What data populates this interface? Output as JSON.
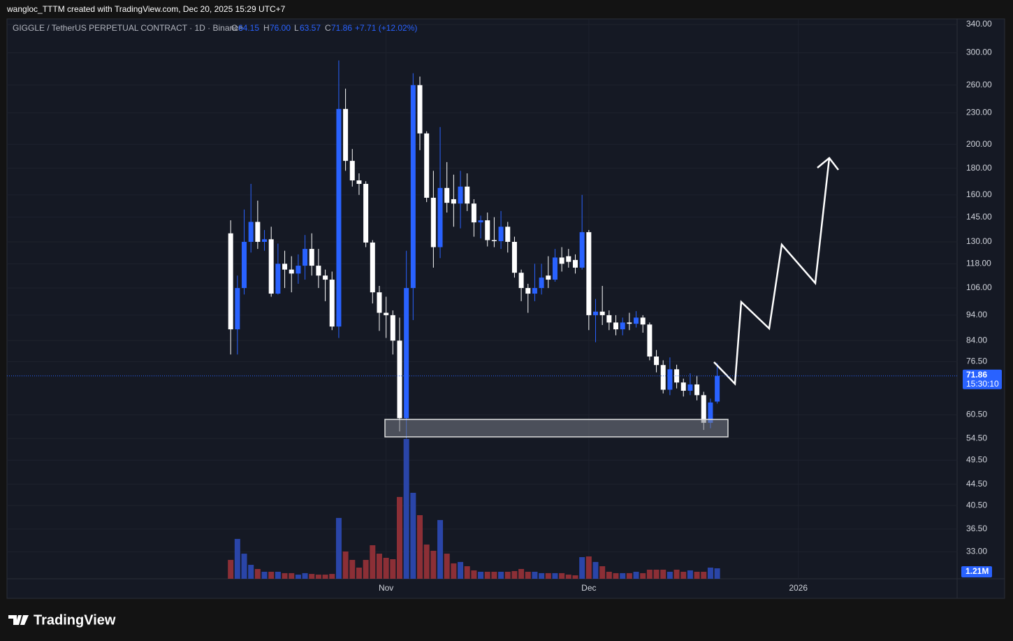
{
  "header": {
    "credit": "wangloc_TTTM created with TradingView.com, Dec 20, 2025 15:29 UTC+7"
  },
  "legend": {
    "symbol": "GIGGLE / TetherUS PERPETUAL CONTRACT · 1D · Binance",
    "open_key": "O",
    "open": "64.15",
    "high_key": "H",
    "high": "76.00",
    "low_key": "L",
    "low": "63.57",
    "close_key": "C",
    "close": "71.86",
    "change": "+7.71 (+12.02%)"
  },
  "price_label": "71.86",
  "countdown": "15:30:10",
  "footer": {
    "brand": "TradingView"
  },
  "chart_data": {
    "type": "candlestick",
    "log_scale": true,
    "grid": true,
    "up_color": "#2962ff",
    "down_color": "#ffffff",
    "volume_up_color": "#2a45a8",
    "volume_down_color": "#8c2f36",
    "x": [
      0,
      1,
      2,
      3,
      4,
      5,
      6,
      7,
      8,
      9,
      10,
      11,
      12,
      13,
      14,
      15,
      16,
      17,
      18,
      19,
      20,
      21,
      22,
      23,
      24,
      25,
      26,
      27,
      28,
      29,
      30,
      31,
      32,
      33,
      34,
      35,
      36,
      37,
      38,
      39,
      40,
      41,
      42,
      43,
      44,
      45,
      46,
      47,
      48,
      49,
      50,
      51,
      52,
      53,
      54,
      55,
      56,
      57,
      58,
      59,
      60,
      61,
      62,
      63,
      64,
      65,
      66,
      67,
      68,
      69,
      70,
      71,
      72
    ],
    "open": [
      135,
      88.3,
      106,
      130,
      142,
      130,
      131.5,
      103.4,
      118,
      115,
      113,
      117,
      126,
      117,
      112,
      110,
      89.4,
      234,
      186,
      170.6,
      168,
      129.6,
      104,
      95,
      94,
      84,
      59.6,
      106,
      260,
      210,
      158,
      127,
      165,
      157,
      154,
      166,
      154,
      141.7,
      143,
      131,
      130.4,
      139,
      130,
      113.4,
      106,
      103.4,
      106,
      112,
      110,
      121.3,
      122,
      120,
      116,
      135.7,
      94,
      95.5,
      94,
      91,
      88.3,
      91,
      90.5,
      93,
      90.2,
      78.3,
      75.4,
      67.6,
      74,
      69.8,
      67.3,
      69.2,
      66,
      58.4,
      64.15
    ],
    "high": [
      143,
      112,
      150,
      168,
      156,
      137,
      139,
      129,
      125,
      122,
      123,
      134,
      135,
      126,
      115,
      114,
      290,
      256,
      196,
      176,
      170,
      131,
      107,
      102,
      96,
      93,
      125,
      274,
      270,
      212,
      178,
      216,
      185,
      175,
      178,
      176,
      157,
      146,
      148,
      145,
      149,
      142,
      133,
      115,
      108,
      118,
      118,
      122,
      126,
      127,
      126,
      123,
      160,
      137,
      101,
      107,
      96,
      94,
      93,
      95,
      95.7,
      94,
      91,
      80.6,
      77,
      78,
      75.5,
      71,
      72.7,
      72,
      67,
      65,
      76
    ],
    "low": [
      79,
      79,
      103,
      124,
      126,
      125,
      102,
      103,
      106,
      104,
      108,
      110,
      112,
      106,
      100,
      88,
      85,
      178,
      166,
      160,
      127,
      99,
      87.7,
      85,
      79,
      56.2,
      54.5,
      92,
      195,
      155,
      116,
      121,
      148,
      139,
      138,
      149,
      133,
      132,
      127.4,
      127,
      126,
      124,
      111,
      100,
      95,
      100,
      103,
      106,
      109,
      114,
      116,
      113,
      115,
      88,
      83.4,
      90,
      88,
      86,
      86,
      88,
      89,
      87,
      77,
      73,
      66.5,
      66,
      68,
      65.6,
      66,
      64.5,
      56.6,
      57,
      63.57
    ],
    "close": [
      88.3,
      106,
      130,
      142,
      130,
      131.5,
      103.4,
      118,
      115,
      113,
      117,
      126,
      117,
      112,
      110,
      89.4,
      234,
      186,
      170.6,
      168,
      129.6,
      104,
      95,
      94,
      84,
      59.6,
      106,
      260,
      210,
      158,
      127,
      165,
      154.5,
      154,
      166,
      154,
      141.7,
      143,
      131,
      130.4,
      139,
      130,
      113.4,
      106,
      103.4,
      106,
      111,
      110,
      121.3,
      118,
      119,
      116,
      135.7,
      94,
      95.5,
      94,
      91,
      88.3,
      91,
      90.5,
      93,
      90.2,
      78.3,
      75.4,
      67.6,
      74,
      69.8,
      67.3,
      69.2,
      66,
      58.4,
      63.9,
      71.86
    ],
    "volume": {
      "values": [
        2180000,
        4600000,
        2900000,
        1610000,
        1130000,
        810000,
        810000,
        810000,
        650000,
        650000,
        480000,
        650000,
        560000,
        480000,
        480000,
        560000,
        7020000,
        3150000,
        2180000,
        1290000,
        2180000,
        3870000,
        2900000,
        2420000,
        2260000,
        9440000,
        16130000,
        9920000,
        7340000,
        3950000,
        3230000,
        6780000,
        2900000,
        1780000,
        1940000,
        1450000,
        970000,
        810000,
        810000,
        810000,
        810000,
        810000,
        890000,
        1130000,
        810000,
        810000,
        650000,
        650000,
        650000,
        650000,
        480000,
        400000,
        2500000,
        2580000,
        1940000,
        1450000,
        810000,
        650000,
        650000,
        650000,
        810000,
        650000,
        1050000,
        1050000,
        1050000,
        810000,
        1050000,
        810000,
        970000,
        810000,
        810000,
        1290000,
        1210000
      ],
      "value_labels": [
        null,
        null,
        null,
        null,
        null,
        null,
        null,
        null,
        null,
        null,
        null,
        null,
        null,
        null,
        null,
        null,
        null,
        null,
        null,
        null,
        null,
        null,
        null,
        null,
        null,
        null,
        null,
        null,
        null,
        null,
        null,
        null,
        null,
        null,
        null,
        null,
        null,
        null,
        null,
        null,
        null,
        null,
        null,
        null,
        null,
        null,
        null,
        null,
        null,
        null,
        null,
        null,
        null,
        null,
        null,
        null,
        null,
        null,
        null,
        null,
        null,
        null,
        null,
        null,
        null,
        null,
        null,
        null,
        null,
        null,
        null,
        null,
        "1.21M"
      ]
    },
    "ylim": [
      29.3,
      348.5
    ],
    "yticks": [
      {
        "value": 340,
        "label": "340.00"
      },
      {
        "value": 300,
        "label": "300.00"
      },
      {
        "value": 260,
        "label": "260.00"
      },
      {
        "value": 230,
        "label": "230.00"
      },
      {
        "value": 200,
        "label": "200.00"
      },
      {
        "value": 180,
        "label": "180.00"
      },
      {
        "value": 160,
        "label": "160.00"
      },
      {
        "value": 145,
        "label": "145.00"
      },
      {
        "value": 130,
        "label": "130.00"
      },
      {
        "value": 118,
        "label": "118.00"
      },
      {
        "value": 106,
        "label": "106.00"
      },
      {
        "value": 94,
        "label": "94.00"
      },
      {
        "value": 84,
        "label": "84.00"
      },
      {
        "value": 76.5,
        "label": "76.50"
      },
      {
        "value": 60.5,
        "label": "60.50"
      },
      {
        "value": 54.5,
        "label": "54.50"
      },
      {
        "value": 49.5,
        "label": "49.50"
      },
      {
        "value": 44.5,
        "label": "44.50"
      },
      {
        "value": 40.5,
        "label": "40.50"
      },
      {
        "value": 36.5,
        "label": "36.50"
      },
      {
        "value": 33,
        "label": "33.00"
      }
    ],
    "xlim": [
      -33.1,
      107.5
    ],
    "xticks": [
      {
        "value": 23,
        "label": "Nov"
      },
      {
        "value": 53,
        "label": "Dec"
      },
      {
        "value": 84,
        "label": "2026"
      }
    ]
  }
}
